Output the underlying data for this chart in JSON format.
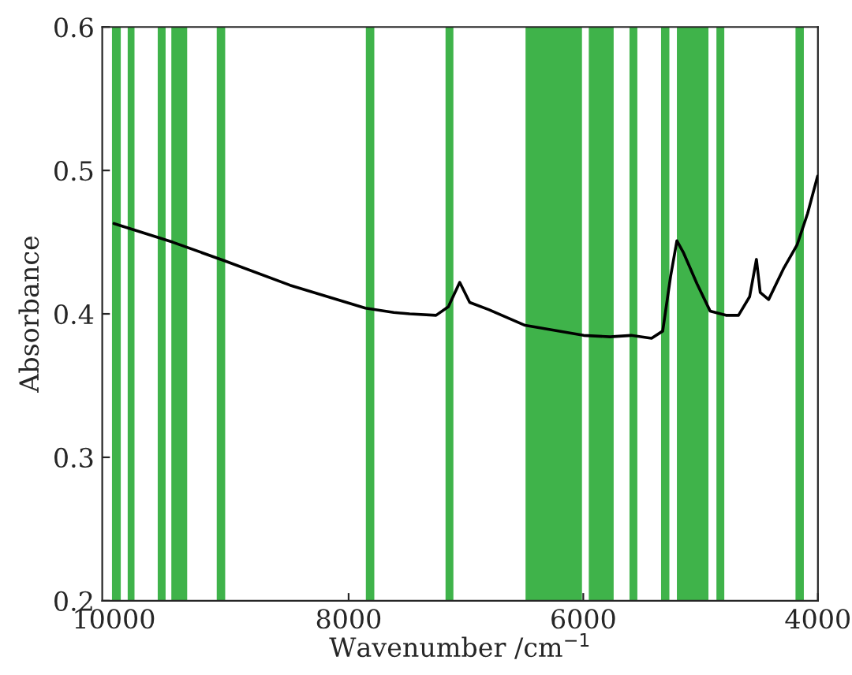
{
  "chart_data": {
    "type": "line",
    "xlabel": "Wavenumber /cm$^{−1}$",
    "ylabel": "Absorbance",
    "xlim": [
      10100,
      4000
    ],
    "ylim": [
      0.2,
      0.6
    ],
    "xticks": [
      10000,
      8000,
      6000,
      4000
    ],
    "yticks": [
      0.2,
      0.3,
      0.4,
      0.5,
      0.6
    ],
    "grid": false,
    "legend": false,
    "marker": "none",
    "line_style": "solid",
    "series": [
      {
        "color": "#000000",
        "x": [
          10000,
          9500,
          9057,
          8500,
          7857,
          7615,
          7480,
          7255,
          7150,
          7053,
          6968,
          6806,
          6496,
          5997,
          5772,
          5593,
          5418,
          5323,
          5256,
          5202,
          5148,
          5031,
          4919,
          4784,
          4677,
          4582,
          4524,
          4492,
          4420,
          4290,
          4178,
          4088,
          4003
        ],
        "values": [
          0.463,
          0.45,
          0.437,
          0.42,
          0.404,
          0.401,
          0.4,
          0.399,
          0.405,
          0.422,
          0.408,
          0.403,
          0.392,
          0.385,
          0.384,
          0.385,
          0.383,
          0.388,
          0.426,
          0.451,
          0.443,
          0.421,
          0.402,
          0.399,
          0.399,
          0.412,
          0.438,
          0.415,
          0.41,
          0.432,
          0.448,
          0.47,
          0.496
        ]
      }
    ],
    "bands": [
      {
        "axis": "x",
        "from": 10017,
        "to": 9942,
        "color": "#3fb34a"
      },
      {
        "axis": "x",
        "from": 9883,
        "to": 9825,
        "color": "#3fb34a"
      },
      {
        "axis": "x",
        "from": 9627,
        "to": 9560,
        "color": "#3fb34a"
      },
      {
        "axis": "x",
        "from": 9511,
        "to": 9376,
        "color": "#3fb34a"
      },
      {
        "axis": "x",
        "from": 9124,
        "to": 9052,
        "color": "#3fb34a"
      },
      {
        "axis": "x",
        "from": 7853,
        "to": 7781,
        "color": "#3fb34a"
      },
      {
        "axis": "x",
        "from": 7174,
        "to": 7107,
        "color": "#3fb34a"
      },
      {
        "axis": "x",
        "from": 6492,
        "to": 6011,
        "color": "#3fb34a"
      },
      {
        "axis": "x",
        "from": 5953,
        "to": 5741,
        "color": "#3fb34a"
      },
      {
        "axis": "x",
        "from": 5606,
        "to": 5539,
        "color": "#3fb34a"
      },
      {
        "axis": "x",
        "from": 5337,
        "to": 5266,
        "color": "#3fb34a"
      },
      {
        "axis": "x",
        "from": 5202,
        "to": 4933,
        "color": "#3fb34a"
      },
      {
        "axis": "x",
        "from": 4865,
        "to": 4798,
        "color": "#3fb34a"
      },
      {
        "axis": "x",
        "from": 4191,
        "to": 4120,
        "color": "#3fb34a"
      }
    ]
  }
}
